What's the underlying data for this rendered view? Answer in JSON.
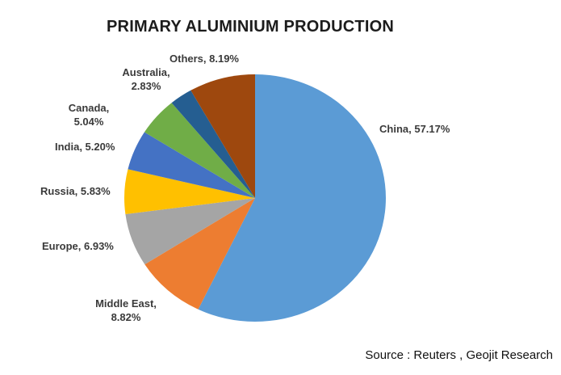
{
  "source": "Source : Reuters , Geojit Research",
  "chart_data": {
    "type": "pie",
    "title": "PRIMARY ALUMINIUM PRODUCTION",
    "legend_position": "none",
    "start_angle_deg": 0,
    "direction": "clockwise",
    "label_format": "name, percent",
    "slices": [
      {
        "name": "China",
        "value": 57.17,
        "color": "#5B9BD5",
        "label": "China, 57.17%"
      },
      {
        "name": "Middle East",
        "value": 8.82,
        "color": "#ED7D31",
        "label": "Middle East,\n8.82%"
      },
      {
        "name": "Europe",
        "value": 6.93,
        "color": "#A5A5A5",
        "label": "Europe, 6.93%"
      },
      {
        "name": "Russia",
        "value": 5.83,
        "color": "#FFC000",
        "label": "Russia, 5.83%"
      },
      {
        "name": "India",
        "value": 5.2,
        "color": "#4472C4",
        "label": "India, 5.20%"
      },
      {
        "name": "Canada",
        "value": 5.04,
        "color": "#70AD47",
        "label": "Canada,\n5.04%"
      },
      {
        "name": "Australia",
        "value": 2.83,
        "color": "#255E91",
        "label": "Australia,\n2.83%"
      },
      {
        "name": "Others",
        "value": 8.19,
        "color": "#9E480E",
        "label": "Others, 8.19%"
      }
    ]
  }
}
